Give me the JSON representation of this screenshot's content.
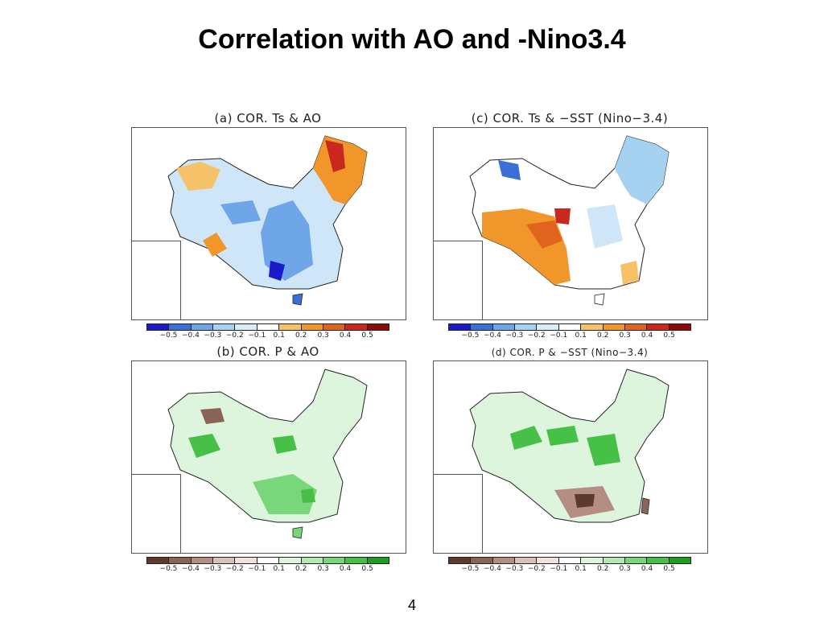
{
  "title": "Correlation with AO and -Nino3.4",
  "page_number": "4",
  "panels": [
    {
      "id": "a",
      "title": "(a) COR. Ts & AO",
      "variable": "Ts",
      "palette": "temp"
    },
    {
      "id": "c",
      "title": "(c) COR. Ts & −SST (Nino−3.4)",
      "variable": "Ts",
      "palette": "temp"
    },
    {
      "id": "b",
      "title": "(b) COR. P & AO",
      "variable": "P",
      "palette": "precip"
    },
    {
      "id": "d",
      "title": "(d) COR. P & −SST (Nino−3.4)",
      "variable": "P",
      "palette": "precip"
    }
  ],
  "legend_ticks": [
    "−0.5",
    "−0.4",
    "−0.3",
    "−0.2",
    "−0.1",
    "0.1",
    "0.2",
    "0.3",
    "0.4",
    "0.5"
  ],
  "palettes": {
    "temp": [
      "#1a1acc",
      "#3a6fd8",
      "#6ea6e8",
      "#a6d2f2",
      "#d8ecfa",
      "#ffffff",
      "#f5c26a",
      "#f0962a",
      "#e0641e",
      "#c8281e",
      "#8b0a0a"
    ],
    "precip": [
      "#5c3a2e",
      "#8a6456",
      "#b48e82",
      "#dcbfb6",
      "#f2e2dc",
      "#ffffff",
      "#dcf5dc",
      "#b4e8b4",
      "#7ad67a",
      "#46c046",
      "#1e9e1e"
    ]
  }
}
